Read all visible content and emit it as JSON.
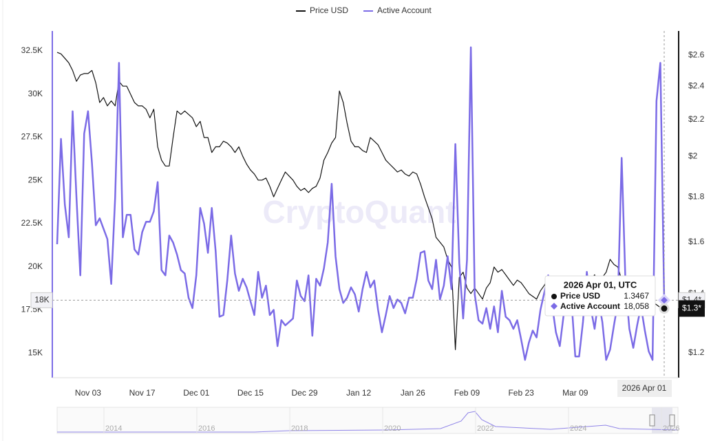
{
  "chart_data": {
    "type": "line",
    "categories": [
      null,
      null,
      null,
      null,
      null,
      null,
      null,
      null,
      "Nov 03",
      null,
      null,
      null,
      null,
      null,
      null,
      null,
      null,
      null,
      null,
      null,
      null,
      null,
      "Nov 17",
      null,
      null,
      null,
      null,
      null,
      null,
      null,
      null,
      null,
      null,
      null,
      null,
      null,
      "Dec 01",
      null,
      null,
      null,
      null,
      null,
      null,
      null,
      null,
      null,
      null,
      null,
      null,
      null,
      "Dec 15",
      null,
      null,
      null,
      null,
      null,
      null,
      null,
      null,
      null,
      null,
      null,
      null,
      null,
      "Dec 29",
      null,
      null,
      null,
      null,
      null,
      null,
      null,
      null,
      null,
      null,
      null,
      null,
      null,
      "Jan 12",
      null,
      null,
      null,
      null,
      null,
      null,
      null,
      null,
      null,
      null,
      null,
      null,
      null,
      "Jan 26",
      null,
      null,
      null,
      null,
      null,
      null,
      null,
      null,
      null,
      null,
      null,
      null,
      null,
      "Feb 09",
      null,
      null,
      null,
      null,
      null,
      null,
      null,
      null,
      null,
      null,
      null,
      null,
      null,
      "Feb 23",
      null,
      null,
      null,
      null,
      null,
      null,
      null,
      null,
      null,
      null,
      null,
      null,
      null,
      "Mar 09",
      null,
      null,
      null,
      null,
      null,
      null,
      null,
      null,
      null,
      null,
      null,
      null,
      null,
      null,
      null,
      null,
      null,
      null,
      null,
      null,
      null,
      null,
      null
    ],
    "series": [
      {
        "name": "Price USD",
        "color": "#111111",
        "axis": "y2",
        "values": [
          2.62,
          2.61,
          2.58,
          2.55,
          2.5,
          2.43,
          2.47,
          2.48,
          2.48,
          2.5,
          2.42,
          2.3,
          2.33,
          2.28,
          2.31,
          2.28,
          2.43,
          2.4,
          2.4,
          2.35,
          2.3,
          2.28,
          2.28,
          2.26,
          2.21,
          2.26,
          2.05,
          1.98,
          1.95,
          1.95,
          2.1,
          2.25,
          2.23,
          2.25,
          2.23,
          2.21,
          2.16,
          2.19,
          2.1,
          2.1,
          2.02,
          2.05,
          2.05,
          2.08,
          2.07,
          2.05,
          2.02,
          2.05,
          2.0,
          1.96,
          1.93,
          1.91,
          1.88,
          1.88,
          1.89,
          1.85,
          1.8,
          1.84,
          1.88,
          1.92,
          1.9,
          1.88,
          1.85,
          1.83,
          1.84,
          1.82,
          1.84,
          1.85,
          1.89,
          1.98,
          2.02,
          2.07,
          2.1,
          2.37,
          2.3,
          2.18,
          2.08,
          2.05,
          2.05,
          2.03,
          2.02,
          2.1,
          2.08,
          2.06,
          2.02,
          1.98,
          1.96,
          1.94,
          1.92,
          1.93,
          1.91,
          1.9,
          1.92,
          1.91,
          1.86,
          1.8,
          1.75,
          1.7,
          1.62,
          1.6,
          1.58,
          1.53,
          1.5,
          1.21,
          1.46,
          1.48,
          1.42,
          1.4,
          1.42,
          1.4,
          1.38,
          1.42,
          1.44,
          1.5,
          1.48,
          1.49,
          1.47,
          1.45,
          1.43,
          1.45,
          1.44,
          1.42,
          1.4,
          1.39,
          1.38,
          1.41,
          1.43,
          1.46,
          1.44,
          1.42,
          1.4,
          1.39,
          1.42,
          1.38,
          1.39,
          1.4,
          1.43,
          1.42,
          1.45,
          1.47,
          1.44,
          1.46,
          1.48,
          1.53,
          1.51,
          1.5,
          1.45,
          1.43,
          1.4,
          1.42,
          1.38,
          1.37,
          1.36,
          1.38,
          1.37,
          1.36,
          1.35,
          1.3467
        ]
      },
      {
        "name": "Active Account",
        "color": "#7b6be6",
        "axis": "y",
        "values": [
          21300,
          27400,
          23600,
          21700,
          29000,
          24000,
          19500,
          27700,
          29000,
          26000,
          22400,
          22800,
          22200,
          21600,
          19000,
          24000,
          31800,
          21700,
          23000,
          23000,
          21000,
          20700,
          22000,
          22600,
          22600,
          23200,
          24900,
          19800,
          19500,
          21800,
          21400,
          20700,
          19800,
          19600,
          18200,
          17600,
          19500,
          23400,
          22500,
          20800,
          23400,
          20900,
          17100,
          17200,
          19200,
          21800,
          19600,
          18600,
          19300,
          18800,
          18000,
          17200,
          19700,
          18200,
          18900,
          17200,
          17500,
          15400,
          16900,
          16600,
          16800,
          17000,
          19200,
          18300,
          18000,
          19500,
          16000,
          19300,
          18900,
          19900,
          21400,
          24800,
          20600,
          18700,
          17900,
          18200,
          18800,
          18400,
          17400,
          18700,
          19700,
          18800,
          19200,
          17500,
          16200,
          17200,
          18300,
          17600,
          18100,
          17900,
          17300,
          18200,
          18200,
          19300,
          20800,
          20900,
          19200,
          18700,
          20400,
          18100,
          18900,
          20600,
          18700,
          27100,
          20200,
          17000,
          20400,
          32700,
          18400,
          16900,
          16700,
          17600,
          16400,
          17700,
          16200,
          18600,
          17100,
          16900,
          16400,
          16900,
          15800,
          14600,
          15600,
          16300,
          15900,
          17500,
          18500,
          19500,
          17800,
          16200,
          15400,
          17200,
          17800,
          18100,
          14800,
          14800,
          16800,
          19700,
          17600,
          16400,
          18100,
          16800,
          14600,
          15200,
          16600,
          17900,
          26300,
          19000,
          16400,
          15300,
          16600,
          17700,
          16300,
          15100,
          14600,
          29600,
          31800,
          18058
        ]
      }
    ],
    "ylim": [
      13570,
      33650
    ],
    "yticks": [
      {
        "value": 15000,
        "label": "15K"
      },
      {
        "value": 17500,
        "label": "17.5K"
      },
      {
        "value": 20000,
        "label": "20K"
      },
      {
        "value": 22500,
        "label": "22.5K"
      },
      {
        "value": 25000,
        "label": "25K"
      },
      {
        "value": 27500,
        "label": "27.5K"
      },
      {
        "value": 30000,
        "label": "30K"
      },
      {
        "value": 32500,
        "label": "32.5K"
      }
    ],
    "y2lim": [
      1.125,
      2.77
    ],
    "y2log": true,
    "y2ticks": [
      {
        "value": 1.2,
        "label": "$1.2"
      },
      {
        "value": 1.4,
        "label": "$1.4"
      },
      {
        "value": 1.6,
        "label": "$1.6"
      },
      {
        "value": 1.8,
        "label": "$1.8"
      },
      {
        "value": 2,
        "label": "$2"
      },
      {
        "value": 2.2,
        "label": "$2.2"
      },
      {
        "value": 2.4,
        "label": "$2.4"
      },
      {
        "value": 2.6,
        "label": "$2.6"
      }
    ],
    "grid": false,
    "legend": "top",
    "watermark": "CryptoQuant",
    "crosshair": {
      "y_label": "18K",
      "y2_label": "$1.4*",
      "price_label": "$1.3*",
      "x_label": "2026 Apr 01"
    },
    "tooltip": {
      "title": "2026 Apr 01, UTC",
      "active_label": "18,058"
    },
    "navigator": {
      "years": [
        "2014",
        "2016",
        "2018",
        "2020",
        "2022",
        "2024",
        "2026"
      ]
    }
  }
}
